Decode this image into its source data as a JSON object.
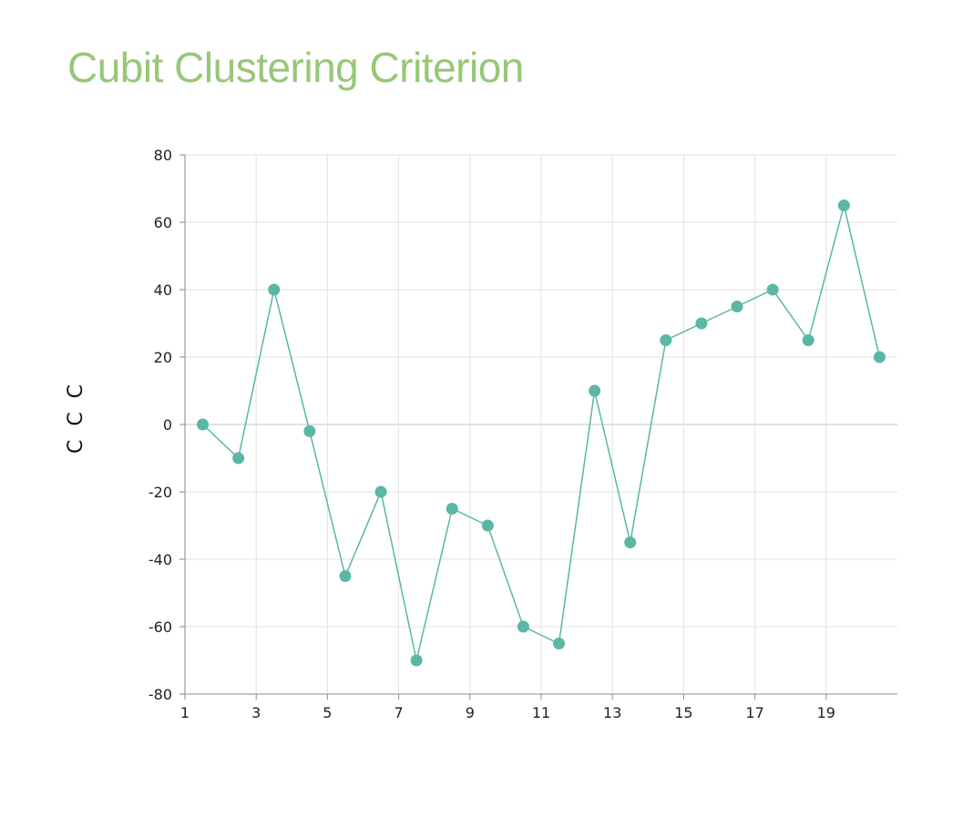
{
  "chart_data": {
    "type": "line",
    "title": "Cubit Clustering Criterion",
    "xlabel": "",
    "ylabel": "C C C",
    "x": [
      1.5,
      2.5,
      3.5,
      4.5,
      5.5,
      6.5,
      7.5,
      8.5,
      9.5,
      10.5,
      11.5,
      12.5,
      13.5,
      14.5,
      15.5,
      16.5,
      17.5,
      18.5,
      19.5,
      20.5
    ],
    "series": [
      {
        "values": [
          0,
          -10,
          40,
          -2,
          -45,
          -20,
          -70,
          -25,
          -30,
          -60,
          -65,
          10,
          -35,
          25,
          30,
          35,
          40,
          25,
          65,
          20
        ],
        "color": "#5ab7a4"
      }
    ],
    "xlim": [
      1,
      21
    ],
    "ylim": [
      -80,
      80
    ],
    "x_ticks": [
      "1",
      "3",
      "5",
      "7",
      "9",
      "11",
      "13",
      "15",
      "17",
      "19"
    ],
    "y_ticks": [
      "80",
      "60",
      "40",
      "20",
      "0",
      "-20",
      "-40",
      "-60",
      "-80"
    ],
    "grid": true,
    "title_color": "#98c777"
  }
}
